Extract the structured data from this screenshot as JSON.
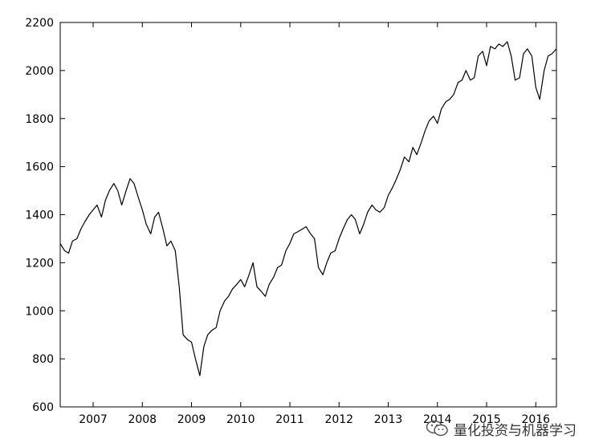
{
  "chart_data": {
    "type": "line",
    "title": "",
    "xlabel": "",
    "ylabel": "",
    "xlim": [
      2006.33,
      2016.42
    ],
    "ylim": [
      600,
      2200
    ],
    "grid": false,
    "legend": "none",
    "line_color": "#000000",
    "x_ticks": [
      2007,
      2008,
      2009,
      2010,
      2011,
      2012,
      2013,
      2014,
      2015,
      2016
    ],
    "x_tick_labels": [
      "2007",
      "2008",
      "2009",
      "2010",
      "2011",
      "2012",
      "2013",
      "2014",
      "2015",
      "2016"
    ],
    "y_ticks": [
      600,
      800,
      1000,
      1200,
      1400,
      1600,
      1800,
      2000,
      2200
    ],
    "y_tick_labels": [
      "600",
      "800",
      "1000",
      "1200",
      "1400",
      "1600",
      "1800",
      "2000",
      "2200"
    ],
    "series": [
      {
        "x": [
          2006.33,
          2006.42,
          2006.5,
          2006.58,
          2006.67,
          2006.75,
          2006.83,
          2006.92,
          2007.0,
          2007.08,
          2007.17,
          2007.25,
          2007.33,
          2007.42,
          2007.5,
          2007.58,
          2007.67,
          2007.75,
          2007.83,
          2007.92,
          2008.0,
          2008.08,
          2008.17,
          2008.25,
          2008.33,
          2008.42,
          2008.5,
          2008.58,
          2008.67,
          2008.75,
          2008.83,
          2008.92,
          2009.0,
          2009.08,
          2009.17,
          2009.25,
          2009.33,
          2009.42,
          2009.5,
          2009.58,
          2009.67,
          2009.75,
          2009.83,
          2009.92,
          2010.0,
          2010.08,
          2010.17,
          2010.25,
          2010.33,
          2010.42,
          2010.5,
          2010.58,
          2010.67,
          2010.75,
          2010.83,
          2010.92,
          2011.0,
          2011.08,
          2011.17,
          2011.25,
          2011.33,
          2011.42,
          2011.5,
          2011.58,
          2011.67,
          2011.75,
          2011.83,
          2011.92,
          2012.0,
          2012.08,
          2012.17,
          2012.25,
          2012.33,
          2012.42,
          2012.5,
          2012.58,
          2012.67,
          2012.75,
          2012.83,
          2012.92,
          2013.0,
          2013.08,
          2013.17,
          2013.25,
          2013.33,
          2013.42,
          2013.5,
          2013.58,
          2013.67,
          2013.75,
          2013.83,
          2013.92,
          2014.0,
          2014.08,
          2014.17,
          2014.25,
          2014.33,
          2014.42,
          2014.5,
          2014.58,
          2014.67,
          2014.75,
          2014.83,
          2014.92,
          2015.0,
          2015.08,
          2015.17,
          2015.25,
          2015.33,
          2015.42,
          2015.5,
          2015.58,
          2015.67,
          2015.75,
          2015.83,
          2015.92,
          2016.0,
          2016.08,
          2016.17,
          2016.25,
          2016.33,
          2016.42
        ],
        "y": [
          1280,
          1250,
          1240,
          1290,
          1300,
          1340,
          1370,
          1400,
          1420,
          1440,
          1390,
          1460,
          1500,
          1530,
          1500,
          1440,
          1500,
          1550,
          1530,
          1470,
          1420,
          1360,
          1320,
          1390,
          1410,
          1340,
          1270,
          1290,
          1250,
          1100,
          900,
          880,
          870,
          800,
          730,
          850,
          900,
          920,
          930,
          1000,
          1040,
          1060,
          1090,
          1110,
          1130,
          1100,
          1150,
          1200,
          1100,
          1080,
          1060,
          1110,
          1140,
          1180,
          1190,
          1250,
          1280,
          1320,
          1330,
          1340,
          1350,
          1320,
          1300,
          1180,
          1150,
          1200,
          1240,
          1250,
          1300,
          1340,
          1380,
          1400,
          1380,
          1320,
          1360,
          1410,
          1440,
          1420,
          1410,
          1430,
          1480,
          1510,
          1550,
          1590,
          1640,
          1620,
          1680,
          1650,
          1700,
          1750,
          1790,
          1810,
          1780,
          1840,
          1870,
          1880,
          1900,
          1950,
          1960,
          2000,
          1960,
          1970,
          2060,
          2080,
          2020,
          2100,
          2090,
          2110,
          2100,
          2120,
          2060,
          1960,
          1970,
          2070,
          2090,
          2060,
          1930,
          1880,
          2000,
          2060,
          2070,
          2090
        ]
      }
    ]
  },
  "watermark": {
    "text": "量化投资与机器学习",
    "icon": "wechat-icon"
  }
}
